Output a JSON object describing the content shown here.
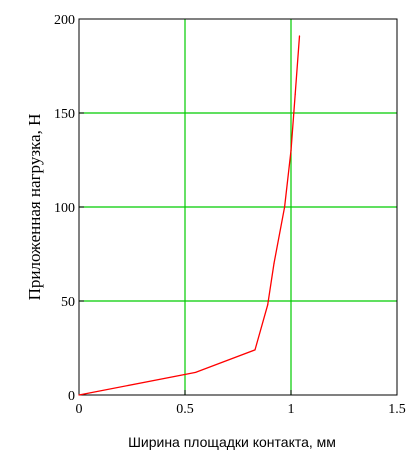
{
  "chart_data": {
    "type": "line",
    "title": "",
    "xlabel": "Ширина площадки контакта, мм",
    "ylabel": "Приложенная нагрузка, Н",
    "xlim": [
      0,
      1.5
    ],
    "ylim": [
      0,
      200
    ],
    "x_ticks": [
      "0",
      "0.5",
      "1",
      "1.5"
    ],
    "y_ticks": [
      "0",
      "50",
      "100",
      "150",
      "200"
    ],
    "x_gridlines": [
      0.5,
      1.0
    ],
    "y_gridlines": [
      50,
      100,
      150
    ],
    "grid": true,
    "grid_color": "#00cc00",
    "series": [
      {
        "color": "#ff0000",
        "x": [
          0,
          0.55,
          0.83,
          0.89,
          0.92,
          0.97,
          1.0,
          1.02,
          1.04
        ],
        "y": [
          0,
          12,
          24,
          48,
          70,
          100,
          130,
          160,
          191
        ]
      }
    ]
  }
}
